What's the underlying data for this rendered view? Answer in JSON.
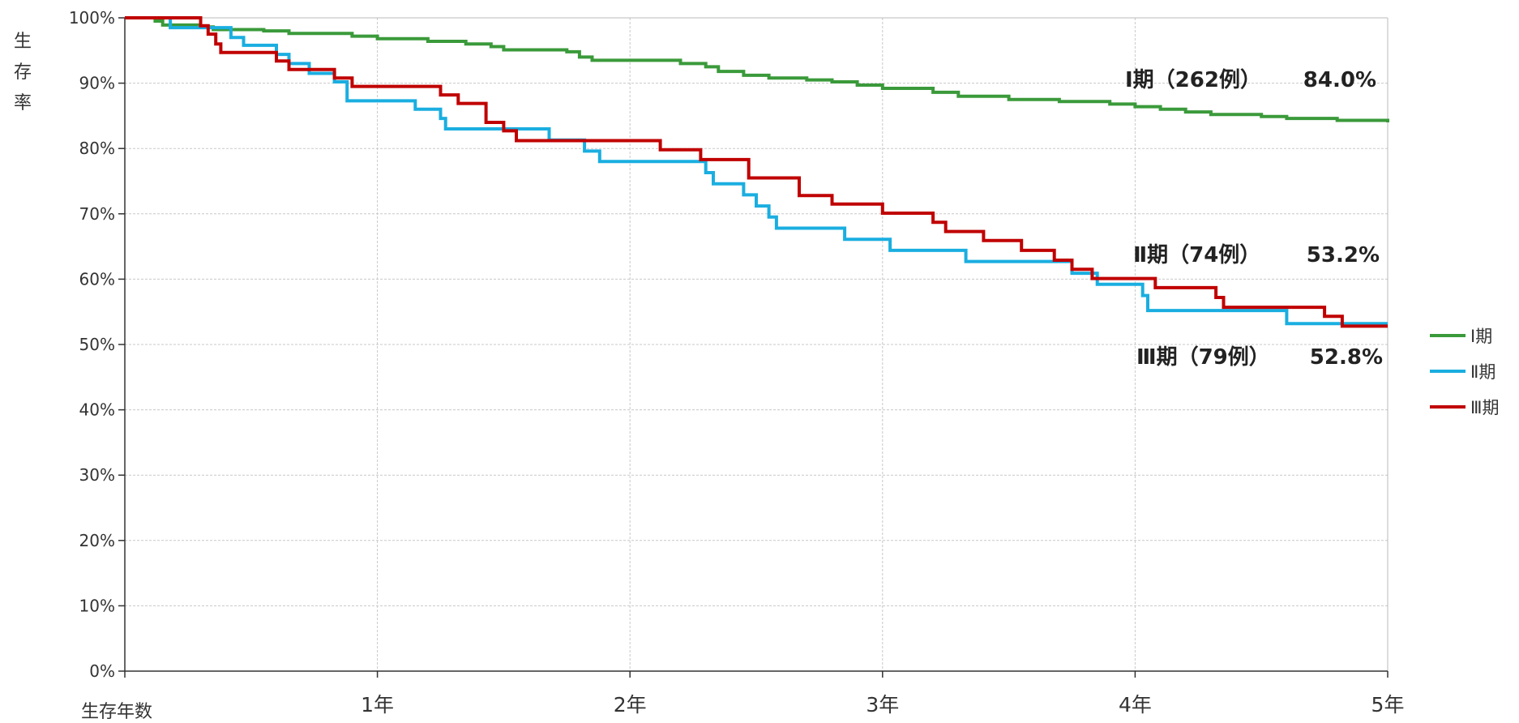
{
  "chart_data": {
    "type": "line",
    "step": true,
    "xlabel": "生存年数",
    "ylabel": "生存率",
    "xlim": [
      0,
      5
    ],
    "ylim": [
      0,
      100
    ],
    "x_ticks": [
      {
        "value": 1,
        "label": "1年"
      },
      {
        "value": 2,
        "label": "2年"
      },
      {
        "value": 3,
        "label": "3年"
      },
      {
        "value": 4,
        "label": "4年"
      },
      {
        "value": 5,
        "label": "5年"
      }
    ],
    "y_ticks": [
      {
        "value": 0,
        "label": "0%"
      },
      {
        "value": 10,
        "label": "10%"
      },
      {
        "value": 20,
        "label": "20%"
      },
      {
        "value": 30,
        "label": "30%"
      },
      {
        "value": 40,
        "label": "40%"
      },
      {
        "value": 50,
        "label": "50%"
      },
      {
        "value": 60,
        "label": "60%"
      },
      {
        "value": 70,
        "label": "70%"
      },
      {
        "value": 80,
        "label": "80%"
      },
      {
        "value": 90,
        "label": "90%"
      },
      {
        "value": 100,
        "label": "100%"
      }
    ],
    "grid": true,
    "legend_position": "right",
    "series": [
      {
        "name": "Ⅰ期",
        "color": "#3a9a3a",
        "annotation": {
          "label": "Ⅰ期（262例）",
          "value": "84.0%"
        },
        "x": [
          0,
          0.12,
          0.15,
          0.3,
          0.35,
          0.55,
          0.65,
          0.9,
          1.0,
          1.2,
          1.35,
          1.45,
          1.5,
          1.75,
          1.8,
          1.85,
          2.0,
          2.2,
          2.3,
          2.35,
          2.45,
          2.55,
          2.7,
          2.8,
          2.9,
          3.0,
          3.2,
          3.3,
          3.5,
          3.7,
          3.9,
          4.0,
          4.1,
          4.2,
          4.3,
          4.5,
          4.6,
          4.8,
          5.0
        ],
        "y": [
          100,
          99.5,
          98.9,
          98.6,
          98.2,
          98.0,
          97.6,
          97.2,
          96.8,
          96.4,
          96.0,
          95.6,
          95.1,
          94.8,
          94.0,
          93.5,
          93.5,
          93.0,
          92.5,
          91.8,
          91.2,
          90.8,
          90.5,
          90.2,
          89.7,
          89.2,
          88.6,
          88.0,
          87.5,
          87.2,
          86.8,
          86.4,
          86.0,
          85.6,
          85.2,
          84.9,
          84.6,
          84.3,
          84.0
        ]
      },
      {
        "name": "Ⅱ期",
        "color": "#1aaee0",
        "annotation": {
          "label": "Ⅱ期（74例）",
          "value": "53.2%"
        },
        "x": [
          0,
          0.18,
          0.3,
          0.42,
          0.47,
          0.6,
          0.65,
          0.73,
          0.83,
          0.88,
          1.15,
          1.25,
          1.27,
          1.68,
          1.82,
          1.88,
          2.3,
          2.33,
          2.45,
          2.5,
          2.55,
          2.58,
          2.85,
          3.03,
          3.33,
          3.75,
          3.85,
          4.03,
          4.05,
          4.6,
          5.0
        ],
        "y": [
          100,
          98.5,
          98.5,
          97.0,
          95.8,
          94.4,
          93.0,
          91.5,
          90.2,
          87.3,
          86.0,
          84.6,
          83.0,
          81.3,
          79.6,
          78.0,
          76.3,
          74.6,
          72.9,
          71.2,
          69.5,
          67.8,
          66.1,
          64.4,
          62.7,
          60.9,
          59.2,
          57.5,
          55.2,
          53.2,
          53.2
        ]
      },
      {
        "name": "Ⅲ期",
        "color": "#c00000",
        "annotation": {
          "label": "Ⅲ期（79例）",
          "value": "52.8%"
        },
        "x": [
          0,
          0.3,
          0.33,
          0.36,
          0.38,
          0.6,
          0.65,
          0.83,
          0.9,
          1.25,
          1.32,
          1.43,
          1.5,
          1.55,
          2.12,
          2.28,
          2.47,
          2.67,
          2.8,
          3.0,
          3.2,
          3.25,
          3.4,
          3.55,
          3.68,
          3.75,
          3.83,
          4.08,
          4.32,
          4.35,
          4.75,
          4.82,
          5.0
        ],
        "y": [
          100,
          98.8,
          97.5,
          96.0,
          94.7,
          93.4,
          92.1,
          90.8,
          89.5,
          88.2,
          86.9,
          84.0,
          82.7,
          81.2,
          79.8,
          78.3,
          75.5,
          72.8,
          71.5,
          70.1,
          68.7,
          67.3,
          65.9,
          64.4,
          62.9,
          61.5,
          60.1,
          58.7,
          57.2,
          55.7,
          54.3,
          52.8,
          52.8
        ]
      }
    ]
  }
}
